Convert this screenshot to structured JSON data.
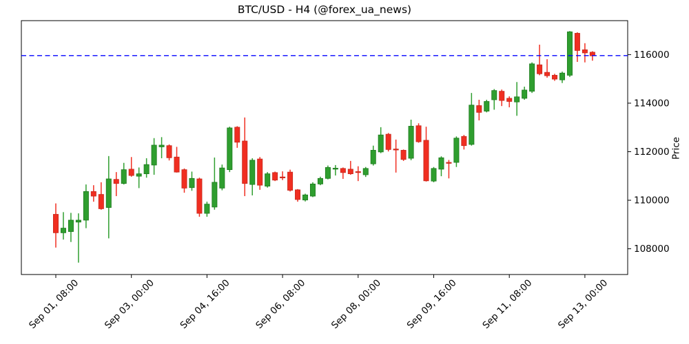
{
  "chart_data": {
    "type": "candlestick",
    "title": "BTC/USD - H4 (@forex_ua_news)",
    "ylabel": "Price",
    "xlabel": "",
    "timeframe": "H4",
    "grid": false,
    "legend": null,
    "ylim": [
      106940,
      117400
    ],
    "y_ticks": [
      108000,
      110000,
      112000,
      114000,
      116000
    ],
    "x_ticks": [
      {
        "index": 0,
        "label": "Sep 01, 08:00"
      },
      {
        "index": 10,
        "label": "Sep 03, 00:00"
      },
      {
        "index": 20,
        "label": "Sep 04, 16:00"
      },
      {
        "index": 30,
        "label": "Sep 06, 08:00"
      },
      {
        "index": 40,
        "label": "Sep 08, 00:00"
      },
      {
        "index": 50,
        "label": "Sep 09, 16:00"
      },
      {
        "index": 60,
        "label": "Sep 11, 08:00"
      },
      {
        "index": 70,
        "label": "Sep 13, 00:00"
      }
    ],
    "hline": {
      "value": 115960,
      "color": "#0000ff",
      "style": "dashed"
    },
    "colors": {
      "up": "#2f9e2f",
      "up_edge": "#1d7a1d",
      "down": "#f02e21",
      "down_edge": "#c6281c",
      "axis": "#000000",
      "background": "#ffffff"
    },
    "columns": [
      "time",
      "open",
      "high",
      "low",
      "close"
    ],
    "ohlc": [
      [
        "Sep 01, 08:00",
        109420,
        109870,
        108050,
        108660
      ],
      [
        "Sep 01, 12:00",
        108660,
        109510,
        108380,
        108850
      ],
      [
        "Sep 01, 16:00",
        108710,
        109480,
        108280,
        109180
      ],
      [
        "Sep 01, 20:00",
        109100,
        109460,
        107430,
        109180
      ],
      [
        "Sep 02, 00:00",
        109180,
        110650,
        108850,
        110360
      ],
      [
        "Sep 02, 04:00",
        110360,
        110620,
        109940,
        110170
      ],
      [
        "Sep 02, 08:00",
        110240,
        110740,
        109610,
        109650
      ],
      [
        "Sep 02, 12:00",
        109700,
        111820,
        108430,
        110880
      ],
      [
        "Sep 02, 16:00",
        110860,
        111160,
        110170,
        110690
      ],
      [
        "Sep 02, 20:00",
        110690,
        111540,
        110650,
        111260
      ],
      [
        "Sep 03, 00:00",
        111280,
        111780,
        110970,
        111020
      ],
      [
        "Sep 03, 04:00",
        110990,
        111350,
        110500,
        111090
      ],
      [
        "Sep 03, 08:00",
        111090,
        111730,
        110930,
        111470
      ],
      [
        "Sep 03, 12:00",
        111450,
        112560,
        111050,
        112270
      ],
      [
        "Sep 03, 16:00",
        112200,
        112600,
        111730,
        112270
      ],
      [
        "Sep 03, 20:00",
        112250,
        112300,
        111640,
        111750
      ],
      [
        "Sep 04, 00:00",
        111780,
        112200,
        111140,
        111160
      ],
      [
        "Sep 04, 04:00",
        111260,
        111310,
        110310,
        110500
      ],
      [
        "Sep 04, 08:00",
        110520,
        111180,
        110390,
        110900
      ],
      [
        "Sep 04, 12:00",
        110880,
        110930,
        109320,
        109460
      ],
      [
        "Sep 04, 16:00",
        109460,
        109940,
        109320,
        109840
      ],
      [
        "Sep 04, 20:00",
        109720,
        111760,
        109610,
        110740
      ],
      [
        "Sep 05, 00:00",
        110500,
        111470,
        110410,
        111330
      ],
      [
        "Sep 05, 04:00",
        111260,
        113030,
        111160,
        112980
      ],
      [
        "Sep 05, 08:00",
        113010,
        113050,
        112160,
        112390
      ],
      [
        "Sep 05, 12:00",
        112440,
        113410,
        110170,
        110690
      ],
      [
        "Sep 05, 16:00",
        110650,
        111730,
        110200,
        111650
      ],
      [
        "Sep 05, 20:00",
        111700,
        111780,
        110430,
        110620
      ],
      [
        "Sep 06, 00:00",
        110580,
        111160,
        110520,
        111090
      ],
      [
        "Sep 06, 04:00",
        111140,
        111180,
        110790,
        110830
      ],
      [
        "Sep 06, 08:00",
        110960,
        111190,
        110830,
        110920
      ],
      [
        "Sep 06, 12:00",
        111160,
        111260,
        110360,
        110410
      ],
      [
        "Sep 06, 16:00",
        110430,
        110460,
        109940,
        110030
      ],
      [
        "Sep 06, 20:00",
        110010,
        110270,
        109950,
        110220
      ],
      [
        "Sep 07, 00:00",
        110170,
        110740,
        110130,
        110670
      ],
      [
        "Sep 07, 04:00",
        110670,
        110970,
        110620,
        110900
      ],
      [
        "Sep 07, 08:00",
        110900,
        111430,
        110860,
        111350
      ],
      [
        "Sep 07, 12:00",
        111290,
        111450,
        111020,
        111320
      ],
      [
        "Sep 07, 16:00",
        111310,
        111350,
        110880,
        111140
      ],
      [
        "Sep 07, 20:00",
        111280,
        111620,
        111050,
        111090
      ],
      [
        "Sep 08, 00:00",
        111180,
        111400,
        110790,
        111150
      ],
      [
        "Sep 08, 04:00",
        111050,
        111370,
        110960,
        111310
      ],
      [
        "Sep 08, 08:00",
        111500,
        112250,
        111430,
        112060
      ],
      [
        "Sep 08, 12:00",
        111990,
        113010,
        111940,
        112690
      ],
      [
        "Sep 08, 16:00",
        112720,
        112770,
        112010,
        112090
      ],
      [
        "Sep 08, 20:00",
        112110,
        112500,
        111140,
        112080
      ],
      [
        "Sep 09, 00:00",
        112060,
        112090,
        111620,
        111680
      ],
      [
        "Sep 09, 04:00",
        111730,
        113320,
        111650,
        113050
      ],
      [
        "Sep 09, 08:00",
        113070,
        113170,
        112370,
        112410
      ],
      [
        "Sep 09, 12:00",
        112470,
        113030,
        110770,
        110800
      ],
      [
        "Sep 09, 16:00",
        110790,
        111370,
        110740,
        111310
      ],
      [
        "Sep 09, 20:00",
        111280,
        111810,
        110990,
        111750
      ],
      [
        "Sep 10, 00:00",
        111560,
        111660,
        110900,
        111550
      ],
      [
        "Sep 10, 04:00",
        111560,
        112630,
        111370,
        112560
      ],
      [
        "Sep 10, 08:00",
        112630,
        112690,
        112090,
        112250
      ],
      [
        "Sep 10, 12:00",
        112300,
        114420,
        112250,
        113920
      ],
      [
        "Sep 10, 16:00",
        113900,
        114140,
        113290,
        113620
      ],
      [
        "Sep 10, 20:00",
        113670,
        114140,
        113620,
        114070
      ],
      [
        "Sep 11, 00:00",
        114140,
        114580,
        113730,
        114520
      ],
      [
        "Sep 11, 04:00",
        114490,
        114560,
        113880,
        114110
      ],
      [
        "Sep 11, 08:00",
        114200,
        114280,
        113830,
        114070
      ],
      [
        "Sep 11, 12:00",
        114050,
        114870,
        113480,
        114260
      ],
      [
        "Sep 11, 16:00",
        114200,
        114680,
        114140,
        114540
      ],
      [
        "Sep 11, 20:00",
        114490,
        115680,
        114420,
        115620
      ],
      [
        "Sep 12, 00:00",
        115580,
        116410,
        115150,
        115210
      ],
      [
        "Sep 12, 04:00",
        115270,
        115810,
        115050,
        115130
      ],
      [
        "Sep 12, 08:00",
        115150,
        115210,
        114920,
        114990
      ],
      [
        "Sep 12, 12:00",
        114960,
        115300,
        114830,
        115240
      ],
      [
        "Sep 12, 16:00",
        115150,
        116970,
        115080,
        116940
      ],
      [
        "Sep 12, 20:00",
        116880,
        116920,
        115700,
        116170
      ],
      [
        "Sep 13, 00:00",
        116200,
        116470,
        115680,
        116070
      ],
      [
        "Sep 13, 04:00",
        116100,
        116140,
        115750,
        115950
      ]
    ]
  }
}
